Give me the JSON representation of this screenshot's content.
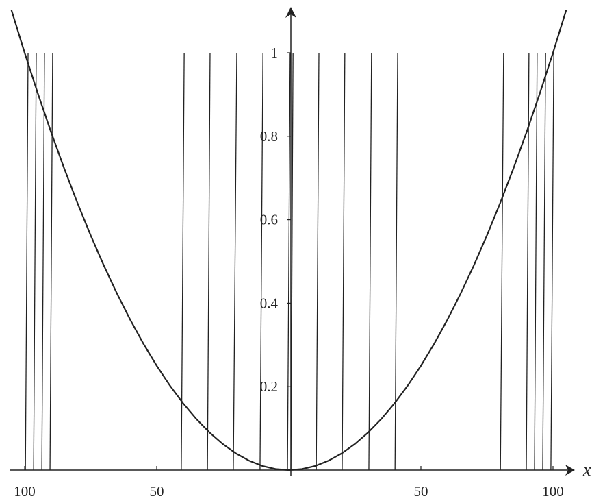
{
  "chart_data": {
    "type": "line",
    "x_label": "x",
    "xlim": [
      -105,
      105
    ],
    "ylim": [
      0,
      1.1
    ],
    "xticks": [
      {
        "value": -100,
        "label": "100"
      },
      {
        "value": -50,
        "label": "50"
      },
      {
        "value": 50,
        "label": "50"
      },
      {
        "value": 100,
        "label": "100"
      }
    ],
    "yticks": [
      0.2,
      0.4,
      0.6,
      0.8,
      1
    ],
    "curve": {
      "x": [
        -105,
        -100,
        -95,
        -90,
        -85,
        -80,
        -75,
        -70,
        -65,
        -60,
        -55,
        -50,
        -45,
        -40,
        -35,
        -30,
        -25,
        -20,
        -15,
        -10,
        -5,
        0,
        5,
        10,
        15,
        20,
        25,
        30,
        35,
        40,
        45,
        50,
        55,
        60,
        65,
        70,
        75,
        80,
        85,
        90,
        95,
        100,
        105
      ],
      "y": [
        1.1025,
        1,
        0.9025,
        0.81,
        0.7225,
        0.64,
        0.5625,
        0.49,
        0.4225,
        0.36,
        0.3025,
        0.25,
        0.2025,
        0.16,
        0.1225,
        0.09,
        0.0625,
        0.04,
        0.0225,
        0.01,
        0.0025,
        0,
        0.0025,
        0.01,
        0.0225,
        0.04,
        0.0625,
        0.09,
        0.1225,
        0.16,
        0.2025,
        0.25,
        0.3025,
        0.36,
        0.4225,
        0.49,
        0.5625,
        0.64,
        0.7225,
        0.81,
        0.9025,
        1,
        1.1025
      ]
    },
    "segment_y": [
      0,
      1
    ],
    "segments": [
      {
        "x0": -99.7,
        "x1": -98.7
      },
      {
        "x0": -96.6,
        "x1": -95.6
      },
      {
        "x0": -93.5,
        "x1": -92.5
      },
      {
        "x0": -90.4,
        "x1": -89.4
      },
      {
        "x0": -40.7,
        "x1": -39.6
      },
      {
        "x0": -30.8,
        "x1": -29.8
      },
      {
        "x0": -21.0,
        "x1": -19.7
      },
      {
        "x0": -10.9,
        "x1": -9.8
      },
      {
        "x0": -0.5,
        "x1": 0.5
      },
      {
        "x0": 0.8,
        "x1": 1.6
      },
      {
        "x0": 10.4,
        "x1": 11.4
      },
      {
        "x0": 20.2,
        "x1": 21.2
      },
      {
        "x0": 30.3,
        "x1": 31.3
      },
      {
        "x0": 40.2,
        "x1": 41.2
      },
      {
        "x0": 80.1,
        "x1": 81.3
      },
      {
        "x0": 89.9,
        "x1": 90.9
      },
      {
        "x0": 93.0,
        "x1": 94.0
      },
      {
        "x0": 96.1,
        "x1": 97.2
      },
      {
        "x0": 99.2,
        "x1": 100.3
      }
    ]
  }
}
